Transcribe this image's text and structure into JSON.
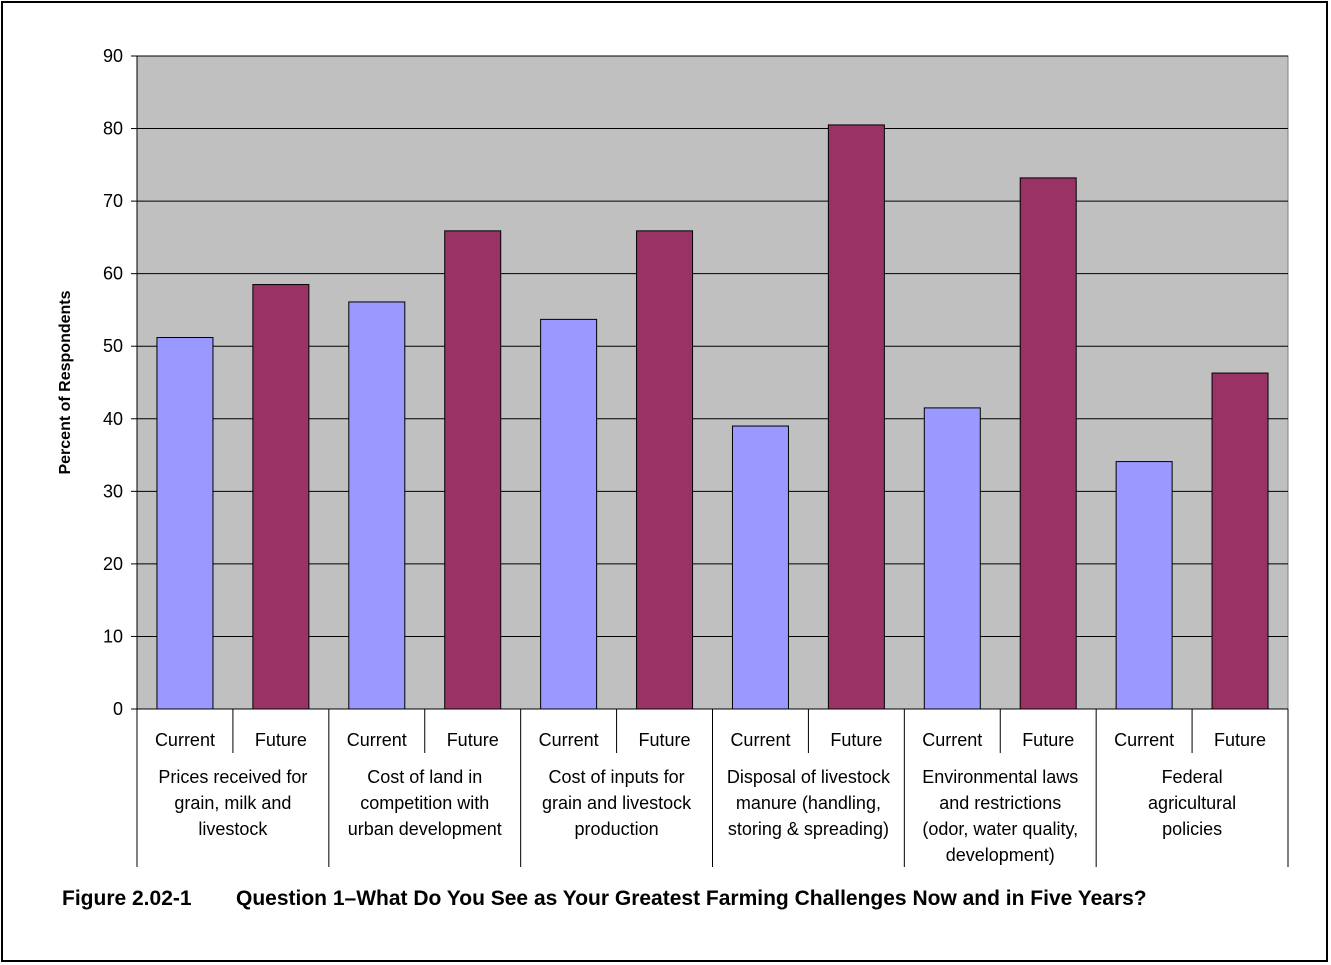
{
  "chart_data": {
    "type": "bar",
    "ylabel": "Percent of Respondents",
    "ylim": [
      0,
      90
    ],
    "yticks": [
      0,
      10,
      20,
      30,
      40,
      50,
      60,
      70,
      80,
      90
    ],
    "plot_background": "#C0C0C0",
    "grid": true,
    "groups": [
      {
        "label": [
          "Prices received for",
          "grain, milk and",
          "livestock"
        ]
      },
      {
        "label": [
          "Cost of land in",
          "competition with",
          "urban development"
        ]
      },
      {
        "label": [
          "Cost of inputs for",
          "grain and livestock",
          "production"
        ]
      },
      {
        "label": [
          "Disposal of livestock",
          "manure (handling,",
          "storing & spreading)"
        ]
      },
      {
        "label": [
          "Environmental laws",
          "and restrictions",
          "(odor, water quality,",
          "development)"
        ]
      },
      {
        "label": [
          "Federal",
          "agricultural",
          "policies"
        ]
      }
    ],
    "series": [
      {
        "name": "Current",
        "color": "#9999FF",
        "values": [
          51.2,
          56.1,
          53.7,
          39.0,
          41.5,
          34.1
        ]
      },
      {
        "name": "Future",
        "color": "#993366",
        "values": [
          58.5,
          65.9,
          65.9,
          80.5,
          73.2,
          46.3
        ]
      }
    ]
  },
  "caption": {
    "number": "Figure 2.02-1",
    "text": "Question 1–What Do You See as Your Greatest Farming Challenges Now and in Five Years?"
  }
}
